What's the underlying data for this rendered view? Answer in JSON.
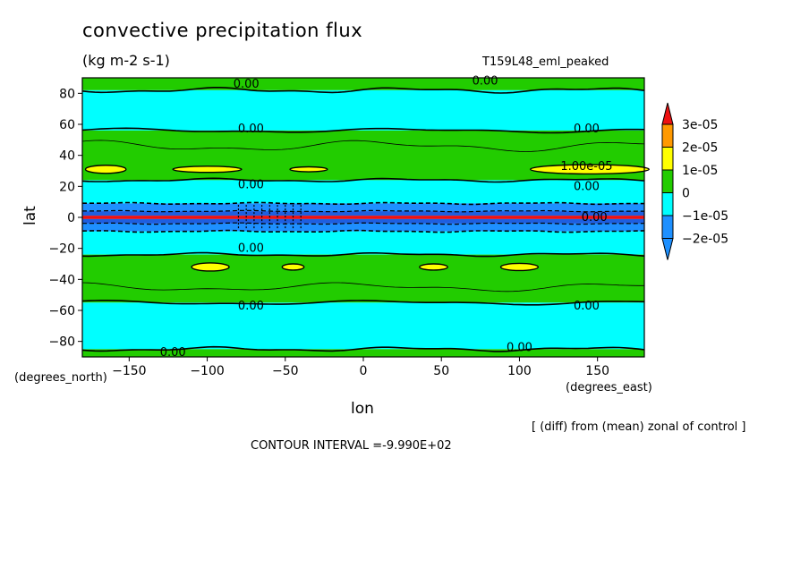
{
  "title": "convective precipitation flux",
  "units": "(kg m-2 s-1)",
  "experiment": "T159L48_eml_peaked",
  "xlabel": "lon",
  "ylabel": "lat",
  "x_unit_note": "(degrees_east)",
  "y_unit_note": "(degrees_north)",
  "diff_note": "[ (diff) from (mean) zonal of control ]",
  "contour_interval": "CONTOUR INTERVAL =-9.990E+02",
  "colors": {
    "lvl_neg2": "#1e90ff",
    "lvl_neg1": "#00ffff",
    "lvl_0": "#22cc00",
    "lvl_1": "#ffff00",
    "lvl_2": "#ff9900",
    "lvl_3": "#ee1111",
    "deep_blue": "#1e5fe0"
  },
  "chart_data": {
    "type": "heatmap",
    "title": "convective precipitation flux",
    "subtitle": "(kg m-2 s-1)",
    "xlabel": "lon",
    "ylabel": "lat",
    "xlim": [
      -180,
      180
    ],
    "ylim": [
      -90,
      90
    ],
    "xticks": [
      -150,
      -100,
      -50,
      0,
      50,
      100,
      150
    ],
    "yticks": [
      -80,
      -60,
      -40,
      -20,
      0,
      20,
      40,
      60,
      80
    ],
    "colorbar": {
      "labels": [
        "3e-05",
        "2e-05",
        "1e-05",
        "0",
        "−1e-05",
        "−2e-05"
      ],
      "levels": [
        -2e-05,
        -1e-05,
        0,
        1e-05,
        2e-05,
        3e-05
      ]
    },
    "zonal_bands": [
      {
        "lat_from": 82,
        "lat_to": 90,
        "level": 0
      },
      {
        "lat_from": 56,
        "lat_to": 82,
        "level": -1
      },
      {
        "lat_from": 24,
        "lat_to": 56,
        "level": 0
      },
      {
        "lat_from": 9,
        "lat_to": 24,
        "level": -1
      },
      {
        "lat_from": 4,
        "lat_to": 9,
        "level": -2
      },
      {
        "lat_from": 1,
        "lat_to": 4,
        "level": -3
      },
      {
        "lat_from": -1,
        "lat_to": 1,
        "level": 3
      },
      {
        "lat_from": -4,
        "lat_to": -1,
        "level": -3
      },
      {
        "lat_from": -9,
        "lat_to": -4,
        "level": -2
      },
      {
        "lat_from": -24,
        "lat_to": -9,
        "level": -1
      },
      {
        "lat_from": -55,
        "lat_to": -24,
        "level": 0
      },
      {
        "lat_from": -85,
        "lat_to": -55,
        "level": -1
      },
      {
        "lat_from": -90,
        "lat_to": -85,
        "level": 0
      }
    ],
    "patches": [
      {
        "lon": -165,
        "lat": 31,
        "dlon": 13,
        "dlat": 2.6,
        "level": 1
      },
      {
        "lon": -100,
        "lat": 31,
        "dlon": 22,
        "dlat": 2.0,
        "level": 1
      },
      {
        "lon": -35,
        "lat": 31,
        "dlon": 12,
        "dlat": 1.6,
        "level": 1
      },
      {
        "lon": 145,
        "lat": 31,
        "dlon": 38,
        "dlat": 3.0,
        "level": 1
      },
      {
        "lon": -98,
        "lat": -32,
        "dlon": 12,
        "dlat": 2.6,
        "level": 1
      },
      {
        "lon": -45,
        "lat": -32,
        "dlon": 7,
        "dlat": 2.0,
        "level": 1
      },
      {
        "lon": 45,
        "lat": -32,
        "dlon": 9,
        "dlat": 2.0,
        "level": 1
      },
      {
        "lon": 100,
        "lat": -32,
        "dlon": 12,
        "dlat": 2.3,
        "level": 1
      }
    ],
    "contour_labels": [
      {
        "lon": -75,
        "lat": 86,
        "text": "0.00"
      },
      {
        "lon": 78,
        "lat": 88,
        "text": "0.00"
      },
      {
        "lon": -72,
        "lat": 57,
        "text": "0.00"
      },
      {
        "lon": 143,
        "lat": 57,
        "text": "0.00"
      },
      {
        "lon": 143,
        "lat": 33,
        "text": "1.00e-05"
      },
      {
        "lon": -72,
        "lat": 21,
        "text": "0.00"
      },
      {
        "lon": 143,
        "lat": 20,
        "text": "0.00"
      },
      {
        "lon": -72,
        "lat": -20,
        "text": "0.00"
      },
      {
        "lon": -72,
        "lat": -57,
        "text": "0.00"
      },
      {
        "lon": 143,
        "lat": -57,
        "text": "0.00"
      },
      {
        "lon": 100,
        "lat": -84,
        "text": "0.00"
      },
      {
        "lon": -122,
        "lat": -87,
        "text": "0.00"
      },
      {
        "lon": 148,
        "lat": 0,
        "text": "0.00"
      }
    ],
    "legend": "right"
  }
}
